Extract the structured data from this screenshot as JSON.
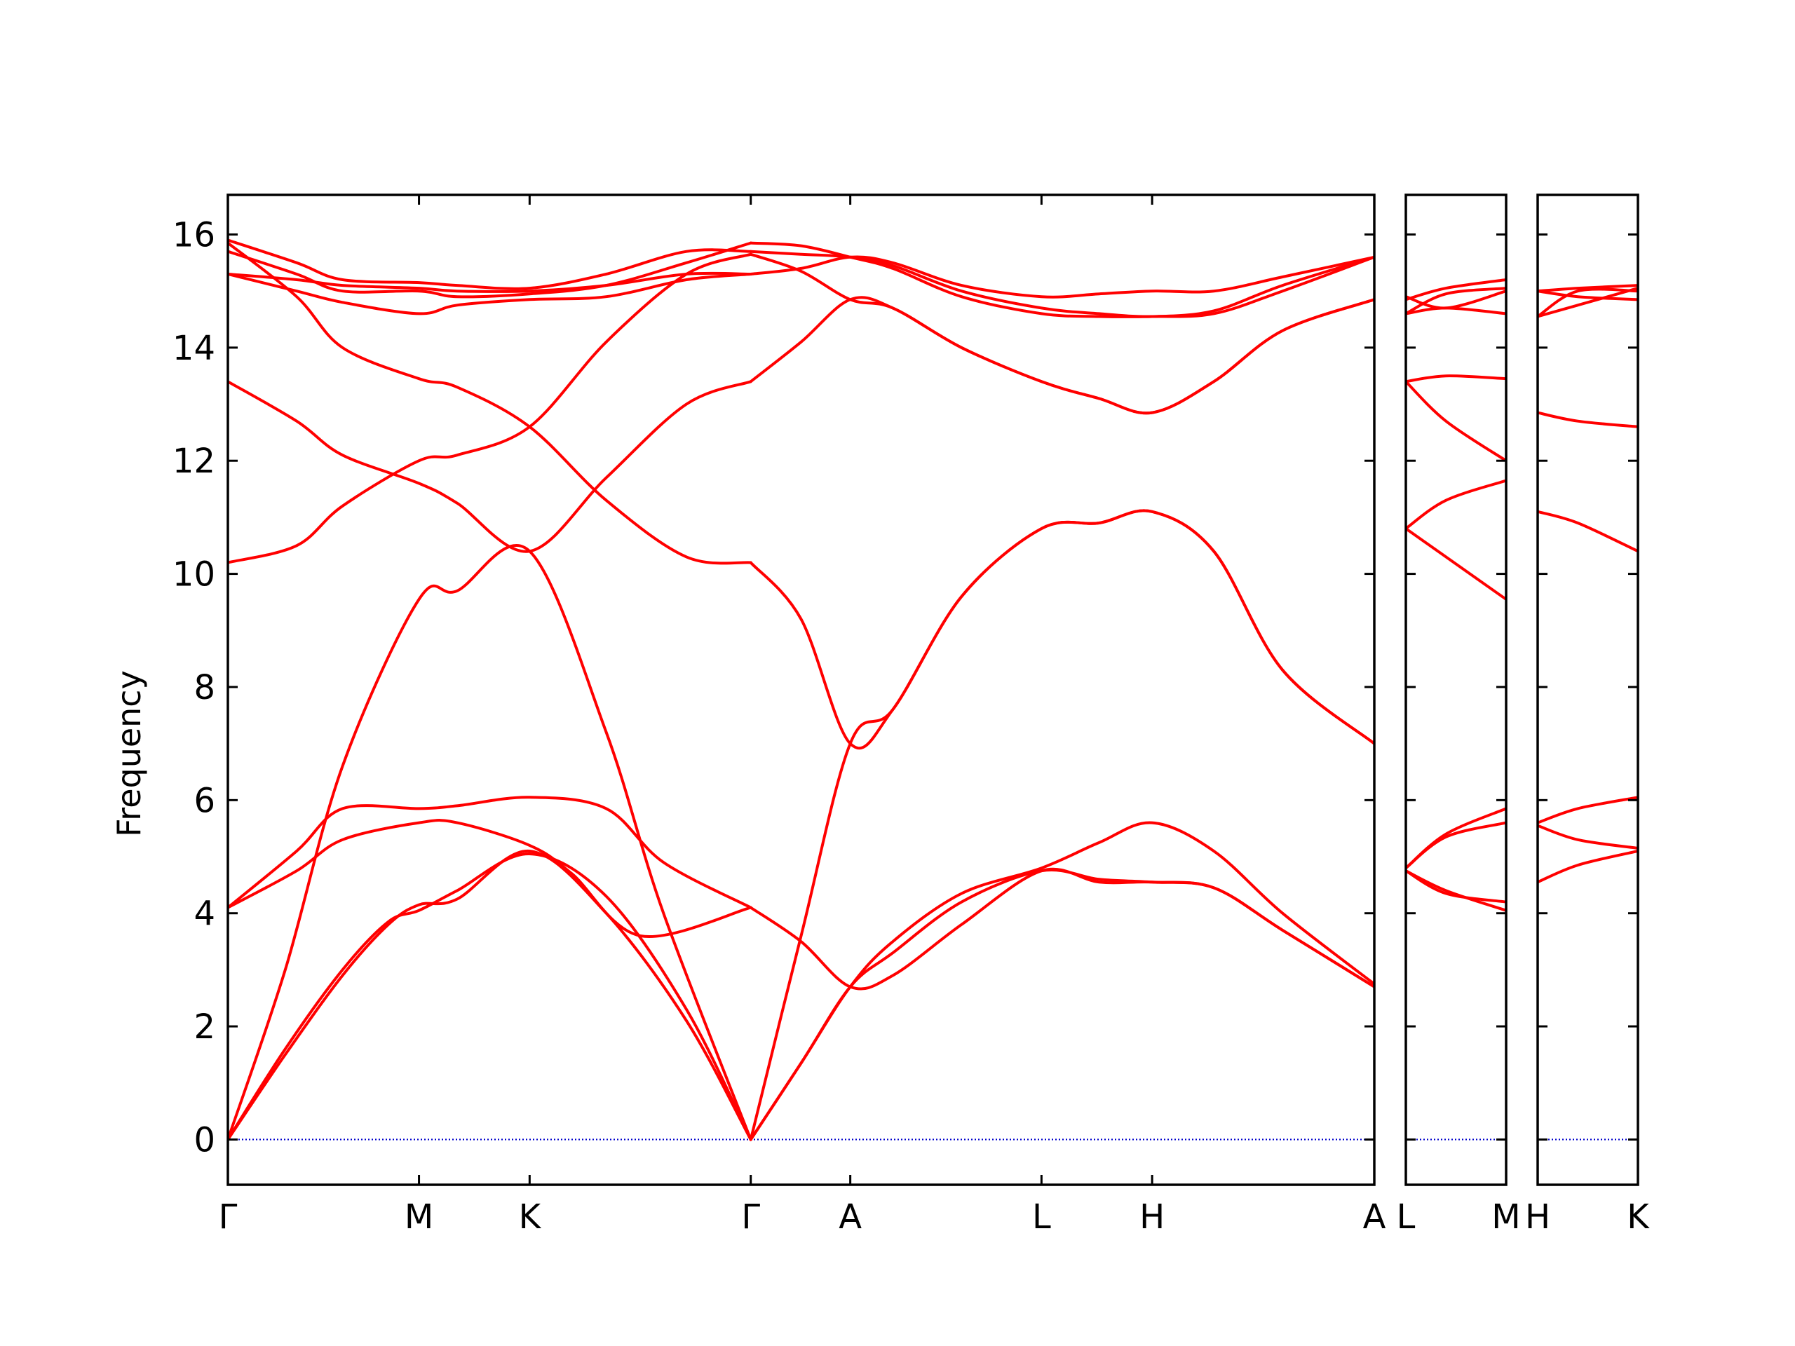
{
  "chart_data": {
    "type": "line",
    "title": "",
    "ylabel": "Frequency",
    "ylim": [
      -0.8,
      16.7
    ],
    "yticks": [
      0,
      2,
      4,
      6,
      8,
      10,
      12,
      14,
      16
    ],
    "grid": false,
    "legend": "none",
    "colors": {
      "bands": "#ff0000",
      "zero_line": "#0000cc",
      "frame": "#000000"
    },
    "panels": [
      {
        "name": "panel-1",
        "xlabels": [
          "Γ",
          "M",
          "K",
          "Γ",
          "A",
          "L",
          "H",
          "A"
        ],
        "x": [
          0,
          0.1667,
          0.2632,
          0.4561,
          0.5429,
          0.7097,
          0.8062,
          1.0
        ],
        "series": [
          {
            "x": [
              0,
              0.05,
              0.1,
              0.14,
              0.1667,
              0.2,
              0.2632,
              0.33,
              0.4,
              0.4561
            ],
            "values": [
              0,
              1.6,
              3.0,
              3.85,
              4.05,
              4.4,
              5.05,
              4.3,
              2.3,
              0
            ]
          },
          {
            "x": [
              0,
              0.05,
              0.1,
              0.14,
              0.1667,
              0.2,
              0.2632,
              0.33,
              0.4,
              0.4561
            ],
            "values": [
              0,
              1.5,
              2.9,
              3.8,
              4.15,
              4.25,
              5.1,
              4.0,
              2.1,
              0
            ]
          },
          {
            "x": [
              0,
              0.05,
              0.1,
              0.1667,
              0.2,
              0.2632,
              0.33,
              0.38,
              0.4561
            ],
            "values": [
              0,
              3.0,
              6.6,
              9.55,
              9.7,
              10.4,
              7.2,
              4.0,
              0
            ]
          },
          {
            "x": [
              0,
              0.06,
              0.1,
              0.1667,
              0.2,
              0.2632,
              0.3,
              0.36,
              0.4561
            ],
            "values": [
              4.1,
              4.75,
              5.3,
              5.6,
              5.6,
              5.2,
              4.7,
              3.6,
              4.1
            ]
          },
          {
            "x": [
              0,
              0.06,
              0.1,
              0.1667,
              0.2,
              0.2632,
              0.33,
              0.38,
              0.4561
            ],
            "values": [
              4.1,
              5.1,
              5.85,
              5.85,
              5.9,
              6.05,
              5.85,
              4.9,
              4.1
            ]
          },
          {
            "x": [
              0,
              0.06,
              0.1,
              0.1667,
              0.2,
              0.2632,
              0.33,
              0.4,
              0.4561
            ],
            "values": [
              10.2,
              10.5,
              11.2,
              12.0,
              12.1,
              12.6,
              14.1,
              15.3,
              15.65
            ]
          },
          {
            "x": [
              0,
              0.06,
              0.1,
              0.1667,
              0.2,
              0.2632,
              0.33,
              0.4,
              0.4561
            ],
            "values": [
              13.4,
              12.7,
              12.1,
              11.6,
              11.25,
              10.4,
              11.7,
              13.0,
              13.4
            ]
          },
          {
            "x": [
              0,
              0.06,
              0.1,
              0.1667,
              0.2,
              0.2632,
              0.33,
              0.4,
              0.4561
            ],
            "values": [
              15.85,
              14.9,
              14.0,
              13.45,
              13.3,
              12.6,
              11.3,
              10.3,
              10.2
            ]
          },
          {
            "x": [
              0,
              0.06,
              0.1,
              0.1667,
              0.2,
              0.2632,
              0.33,
              0.4,
              0.4561
            ],
            "values": [
              15.7,
              15.3,
              15.0,
              15.0,
              14.9,
              14.95,
              15.1,
              15.5,
              15.85
            ]
          },
          {
            "x": [
              0,
              0.06,
              0.1,
              0.1667,
              0.2,
              0.2632,
              0.33,
              0.4,
              0.4561
            ],
            "values": [
              15.3,
              15.2,
              15.1,
              15.05,
              15.0,
              15.0,
              15.1,
              15.3,
              15.3
            ]
          },
          {
            "x": [
              0,
              0.06,
              0.1,
              0.1667,
              0.2,
              0.2632,
              0.33,
              0.4,
              0.4561
            ],
            "values": [
              15.9,
              15.5,
              15.2,
              15.15,
              15.1,
              15.05,
              15.3,
              15.7,
              15.7
            ]
          },
          {
            "x": [
              0,
              0.06,
              0.1,
              0.1667,
              0.2,
              0.2632,
              0.33,
              0.4,
              0.4561
            ],
            "values": [
              15.3,
              15.0,
              14.8,
              14.6,
              14.75,
              14.85,
              14.9,
              15.2,
              15.3
            ]
          },
          {
            "x": [
              0.4561,
              0.5,
              0.5429,
              0.58,
              0.64,
              0.7097,
              0.76,
              0.8062,
              0.86,
              0.92,
              1.0
            ],
            "values": [
              0,
              1.35,
              2.7,
              3.3,
              4.2,
              4.75,
              4.6,
              4.55,
              4.45,
              3.7,
              2.7
            ]
          },
          {
            "x": [
              0.4561,
              0.5,
              0.5429,
              0.58,
              0.64,
              0.7097,
              0.76,
              0.8062,
              0.86,
              0.92,
              1.0
            ],
            "values": [
              0,
              1.35,
              2.7,
              3.5,
              4.35,
              4.8,
              5.25,
              5.6,
              5.1,
              4.0,
              2.75
            ]
          },
          {
            "x": [
              0.4561,
              0.5,
              0.5429,
              0.58,
              0.64,
              0.7097,
              0.76,
              0.8062,
              0.86,
              0.92,
              1.0
            ],
            "values": [
              4.1,
              3.5,
              2.7,
              2.9,
              3.8,
              4.75,
              4.55,
              4.55,
              4.45,
              3.7,
              2.7
            ]
          },
          {
            "x": [
              0.4561,
              0.5,
              0.5429,
              0.58,
              0.64,
              0.7097,
              0.76,
              0.8062,
              0.86,
              0.92,
              1.0
            ],
            "values": [
              0,
              3.6,
              7.0,
              7.6,
              9.6,
              10.8,
              10.9,
              11.1,
              10.4,
              8.3,
              7.0
            ]
          },
          {
            "x": [
              0.4561,
              0.5,
              0.5429,
              0.58,
              0.64,
              0.7097,
              0.76,
              0.8062,
              0.86,
              0.92,
              1.0
            ],
            "values": [
              10.2,
              9.2,
              7.0,
              7.6,
              9.6,
              10.8,
              10.9,
              11.1,
              10.4,
              8.3,
              7.0
            ]
          },
          {
            "x": [
              0.4561,
              0.5,
              0.5429,
              0.58,
              0.64,
              0.7097,
              0.76,
              0.8062,
              0.86,
              0.92,
              1.0
            ],
            "values": [
              13.4,
              14.1,
              14.85,
              14.7,
              14.0,
              13.4,
              13.1,
              12.85,
              13.4,
              14.3,
              14.85
            ]
          },
          {
            "x": [
              0.4561,
              0.5,
              0.5429,
              0.58,
              0.64,
              0.7097,
              0.76,
              0.8062,
              0.86,
              0.92,
              1.0
            ],
            "values": [
              15.65,
              15.35,
              14.85,
              14.7,
              14.0,
              13.4,
              13.1,
              12.85,
              13.4,
              14.3,
              14.85
            ]
          },
          {
            "x": [
              0.4561,
              0.5,
              0.5429,
              0.58,
              0.64,
              0.7097,
              0.76,
              0.8062,
              0.86,
              0.92,
              1.0
            ],
            "values": [
              15.3,
              15.4,
              15.6,
              15.5,
              15.1,
              14.9,
              14.95,
              15.0,
              15.0,
              15.25,
              15.6
            ]
          },
          {
            "x": [
              0.4561,
              0.5,
              0.5429,
              0.58,
              0.64,
              0.7097,
              0.76,
              0.8062,
              0.86,
              0.92,
              1.0
            ],
            "values": [
              15.85,
              15.8,
              15.6,
              15.4,
              14.9,
              14.6,
              14.55,
              14.55,
              14.6,
              15.0,
              15.6
            ]
          },
          {
            "x": [
              0.4561,
              0.5,
              0.5429,
              0.58,
              0.64,
              0.7097,
              0.76,
              0.8062,
              0.86,
              0.92,
              1.0
            ],
            "values": [
              15.7,
              15.65,
              15.6,
              15.45,
              15.0,
              14.7,
              14.6,
              14.55,
              14.65,
              15.1,
              15.6
            ]
          }
        ]
      },
      {
        "name": "panel-2",
        "xlabels": [
          "L",
          "M"
        ],
        "x": [
          0,
          1
        ],
        "series": [
          {
            "x": [
              0,
              0.4,
              1.0
            ],
            "values": [
              4.75,
              4.4,
              4.05
            ]
          },
          {
            "x": [
              0,
              0.4,
              1.0
            ],
            "values": [
              4.75,
              4.35,
              4.2
            ]
          },
          {
            "x": [
              0,
              0.4,
              1.0
            ],
            "values": [
              4.8,
              5.35,
              5.6
            ]
          },
          {
            "x": [
              0,
              0.4,
              1.0
            ],
            "values": [
              4.8,
              5.4,
              5.85
            ]
          },
          {
            "x": [
              0,
              0.4,
              1.0
            ],
            "values": [
              10.8,
              10.3,
              9.55
            ]
          },
          {
            "x": [
              0,
              0.4,
              1.0
            ],
            "values": [
              10.8,
              11.3,
              11.65
            ]
          },
          {
            "x": [
              0,
              0.4,
              1.0
            ],
            "values": [
              13.4,
              12.7,
              12.0
            ]
          },
          {
            "x": [
              0,
              0.4,
              1.0
            ],
            "values": [
              13.4,
              13.5,
              13.45
            ]
          },
          {
            "x": [
              0,
              0.4,
              1.0
            ],
            "values": [
              14.6,
              14.7,
              14.6
            ]
          },
          {
            "x": [
              0,
              0.4,
              1.0
            ],
            "values": [
              14.9,
              14.7,
              15.0
            ]
          },
          {
            "x": [
              0,
              0.4,
              1.0
            ],
            "values": [
              14.6,
              14.95,
              15.05
            ]
          },
          {
            "x": [
              0,
              0.4,
              1.0
            ],
            "values": [
              14.85,
              15.05,
              15.2
            ]
          }
        ]
      },
      {
        "name": "panel-3",
        "xlabels": [
          "H",
          "K"
        ],
        "x": [
          0,
          1
        ],
        "series": [
          {
            "x": [
              0,
              0.4,
              1.0
            ],
            "values": [
              4.55,
              4.85,
              5.1
            ]
          },
          {
            "x": [
              0,
              0.4,
              1.0
            ],
            "values": [
              5.55,
              5.3,
              5.15
            ]
          },
          {
            "x": [
              0,
              0.4,
              1.0
            ],
            "values": [
              5.6,
              5.85,
              6.05
            ]
          },
          {
            "x": [
              0,
              0.4,
              1.0
            ],
            "values": [
              11.1,
              10.9,
              10.4
            ]
          },
          {
            "x": [
              0,
              0.4,
              1.0
            ],
            "values": [
              12.85,
              12.7,
              12.6
            ]
          },
          {
            "x": [
              0,
              0.4,
              1.0
            ],
            "values": [
              14.55,
              14.75,
              15.05
            ]
          },
          {
            "x": [
              0,
              0.4,
              1.0
            ],
            "values": [
              15.0,
              14.9,
              14.85
            ]
          },
          {
            "x": [
              0,
              0.4,
              1.0
            ],
            "values": [
              15.0,
              15.05,
              15.1
            ]
          },
          {
            "x": [
              0,
              0.4,
              1.0
            ],
            "values": [
              14.55,
              15.0,
              15.0
            ]
          }
        ]
      }
    ]
  }
}
